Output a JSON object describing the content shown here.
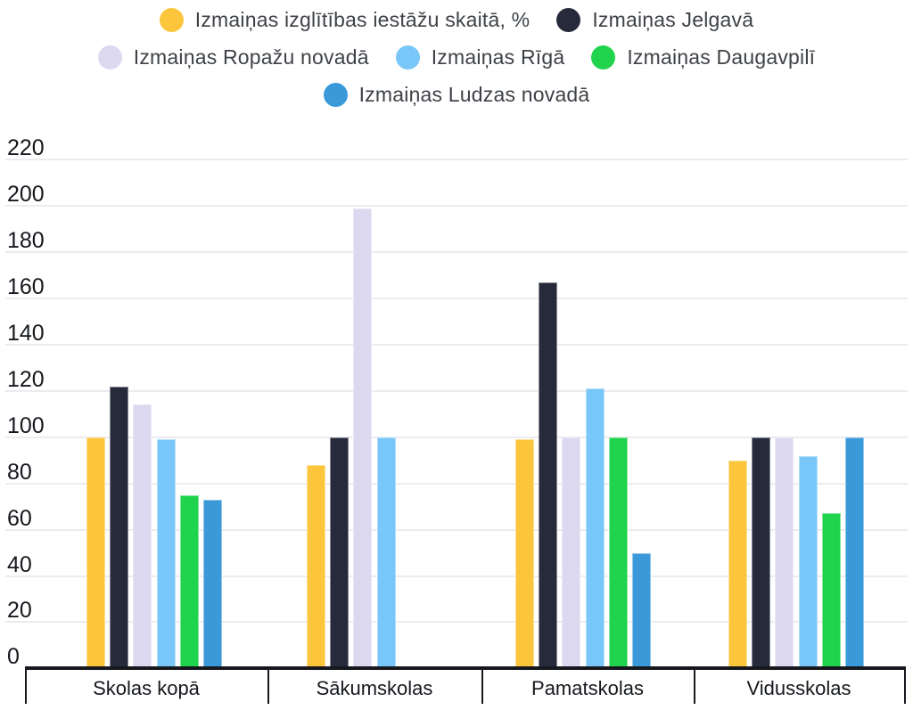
{
  "chart_data": {
    "type": "bar",
    "title": "",
    "categories": [
      "Skolas kopā",
      "Sākumskolas",
      "Pamatskolas",
      "Vidusskolas"
    ],
    "series": [
      {
        "name": "Izmaiņas izglītības iestāžu skaitā, %",
        "color": "#FCC63C",
        "values": [
          100,
          88,
          99,
          90
        ]
      },
      {
        "name": "Izmaiņas Jelgavā",
        "color": "#262A3B",
        "values": [
          122,
          100,
          167,
          100
        ]
      },
      {
        "name": "Izmaiņas Ropažu novadā",
        "color": "#DBD8F0",
        "values": [
          114,
          199,
          100,
          100
        ]
      },
      {
        "name": "Izmaiņas Rīgā",
        "color": "#79C7F8",
        "values": [
          99,
          100,
          121,
          92
        ]
      },
      {
        "name": "Izmaiņas Daugavpilī",
        "color": "#1FD44C",
        "values": [
          75,
          null,
          100,
          67
        ]
      },
      {
        "name": "Izmaiņas Ludzas novadā",
        "color": "#3A99D9",
        "values": [
          73,
          null,
          50,
          100
        ]
      }
    ],
    "yticks": [
      220,
      200,
      180,
      160,
      140,
      120,
      100,
      80,
      60,
      40,
      20,
      0
    ],
    "ylim": [
      0,
      220
    ],
    "xlabel": "",
    "ylabel": "",
    "grid": true,
    "legend_position": "top",
    "legend_rows": [
      [
        0,
        1
      ],
      [
        2,
        3,
        4
      ],
      [
        5
      ]
    ],
    "colors": {
      "axis": "#16181d",
      "grid": "#ececf0",
      "tick_text": "#15181d",
      "legend_text": "#3e4247",
      "background": "#ffffff"
    }
  }
}
